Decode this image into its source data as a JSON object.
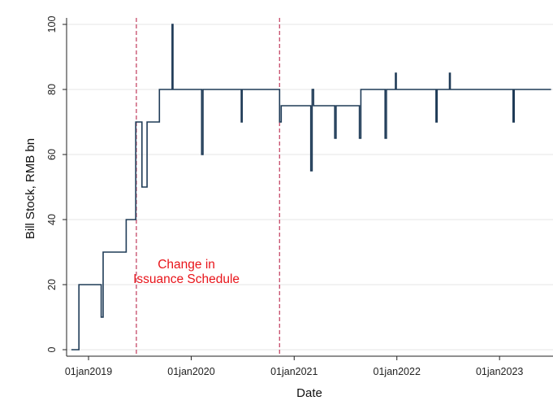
{
  "chart_data": {
    "type": "line",
    "title": "",
    "xlabel": "Date",
    "ylabel": "Bill Stock, RMB bn",
    "xlim": [
      "2018-10-15",
      "2023-07-10"
    ],
    "ylim": [
      -2,
      102
    ],
    "y_ticks": [
      0,
      20,
      40,
      60,
      80,
      100
    ],
    "x_ticks": [
      {
        "date": "2019-01-01",
        "label": "01jan2019"
      },
      {
        "date": "2020-01-01",
        "label": "01jan2020"
      },
      {
        "date": "2021-01-01",
        "label": "01jan2021"
      },
      {
        "date": "2022-01-01",
        "label": "01jan2022"
      },
      {
        "date": "2023-01-01",
        "label": "01jan2023"
      }
    ],
    "grid": "horizontal",
    "line_color": "#1f3b57",
    "reference_lines": [
      {
        "date": "2019-06-20",
        "color": "#c0395a"
      },
      {
        "date": "2020-11-10",
        "color": "#c0395a"
      }
    ],
    "annotation": {
      "lines": [
        "Change in",
        "Issuance Schedule"
      ],
      "date": "2019-12-15",
      "y": 20.5,
      "color": "#e8141a"
    },
    "series": [
      {
        "x": [
          "2018-11-01",
          "2018-11-28",
          "2018-11-28",
          "2019-02-15",
          "2019-02-15",
          "2019-02-22",
          "2019-02-22",
          "2019-05-15",
          "2019-05-15",
          "2019-06-18",
          "2019-06-18",
          "2019-07-10",
          "2019-07-10",
          "2019-07-28",
          "2019-07-28",
          "2019-09-10",
          "2019-09-10",
          "2019-10-25",
          "2019-10-25",
          "2019-10-28",
          "2019-10-28",
          "2019-10-31",
          "2019-10-31",
          "2020-02-07",
          "2020-02-07",
          "2020-02-12",
          "2020-02-12",
          "2020-06-27",
          "2020-06-27",
          "2020-06-30",
          "2020-06-30",
          "2020-11-10",
          "2020-11-10",
          "2020-11-16",
          "2020-11-16",
          "2021-03-01",
          "2021-03-01",
          "2021-03-06",
          "2021-03-06",
          "2021-03-11",
          "2021-03-11",
          "2021-04-10",
          "2021-04-10",
          "2021-05-25",
          "2021-05-25",
          "2021-05-30",
          "2021-05-30",
          "2021-06-27",
          "2021-06-27",
          "2021-08-21",
          "2021-08-21",
          "2021-08-26",
          "2021-08-26",
          "2021-09-26",
          "2021-09-26",
          "2021-10-01",
          "2021-10-01",
          "2021-11-20",
          "2021-11-20",
          "2021-11-25",
          "2021-11-25",
          "2021-12-24",
          "2021-12-24",
          "2021-12-27",
          "2021-12-27",
          "2021-12-30",
          "2021-12-30",
          "2022-05-20",
          "2022-05-20",
          "2022-05-24",
          "2022-05-24",
          "2022-07-04",
          "2022-07-04",
          "2022-07-07",
          "2022-07-07",
          "2022-07-10",
          "2022-07-10",
          "2023-02-18",
          "2023-02-18",
          "2023-02-22",
          "2023-02-22",
          "2023-07-03"
        ],
        "y": [
          0,
          0,
          20,
          20,
          10,
          10,
          30,
          30,
          40,
          40,
          70,
          70,
          50,
          50,
          70,
          70,
          80,
          80,
          100,
          100,
          80,
          80,
          80,
          80,
          60,
          60,
          80,
          80,
          70,
          70,
          80,
          80,
          70,
          70,
          75,
          75,
          55,
          55,
          80,
          80,
          75,
          75,
          75,
          75,
          65,
          65,
          75,
          75,
          75,
          75,
          65,
          65,
          80,
          80,
          80,
          80,
          80,
          80,
          65,
          65,
          80,
          80,
          80,
          80,
          85,
          85,
          80,
          80,
          70,
          70,
          80,
          80,
          80,
          80,
          85,
          85,
          80,
          80,
          70,
          70,
          80,
          80
        ]
      }
    ]
  }
}
